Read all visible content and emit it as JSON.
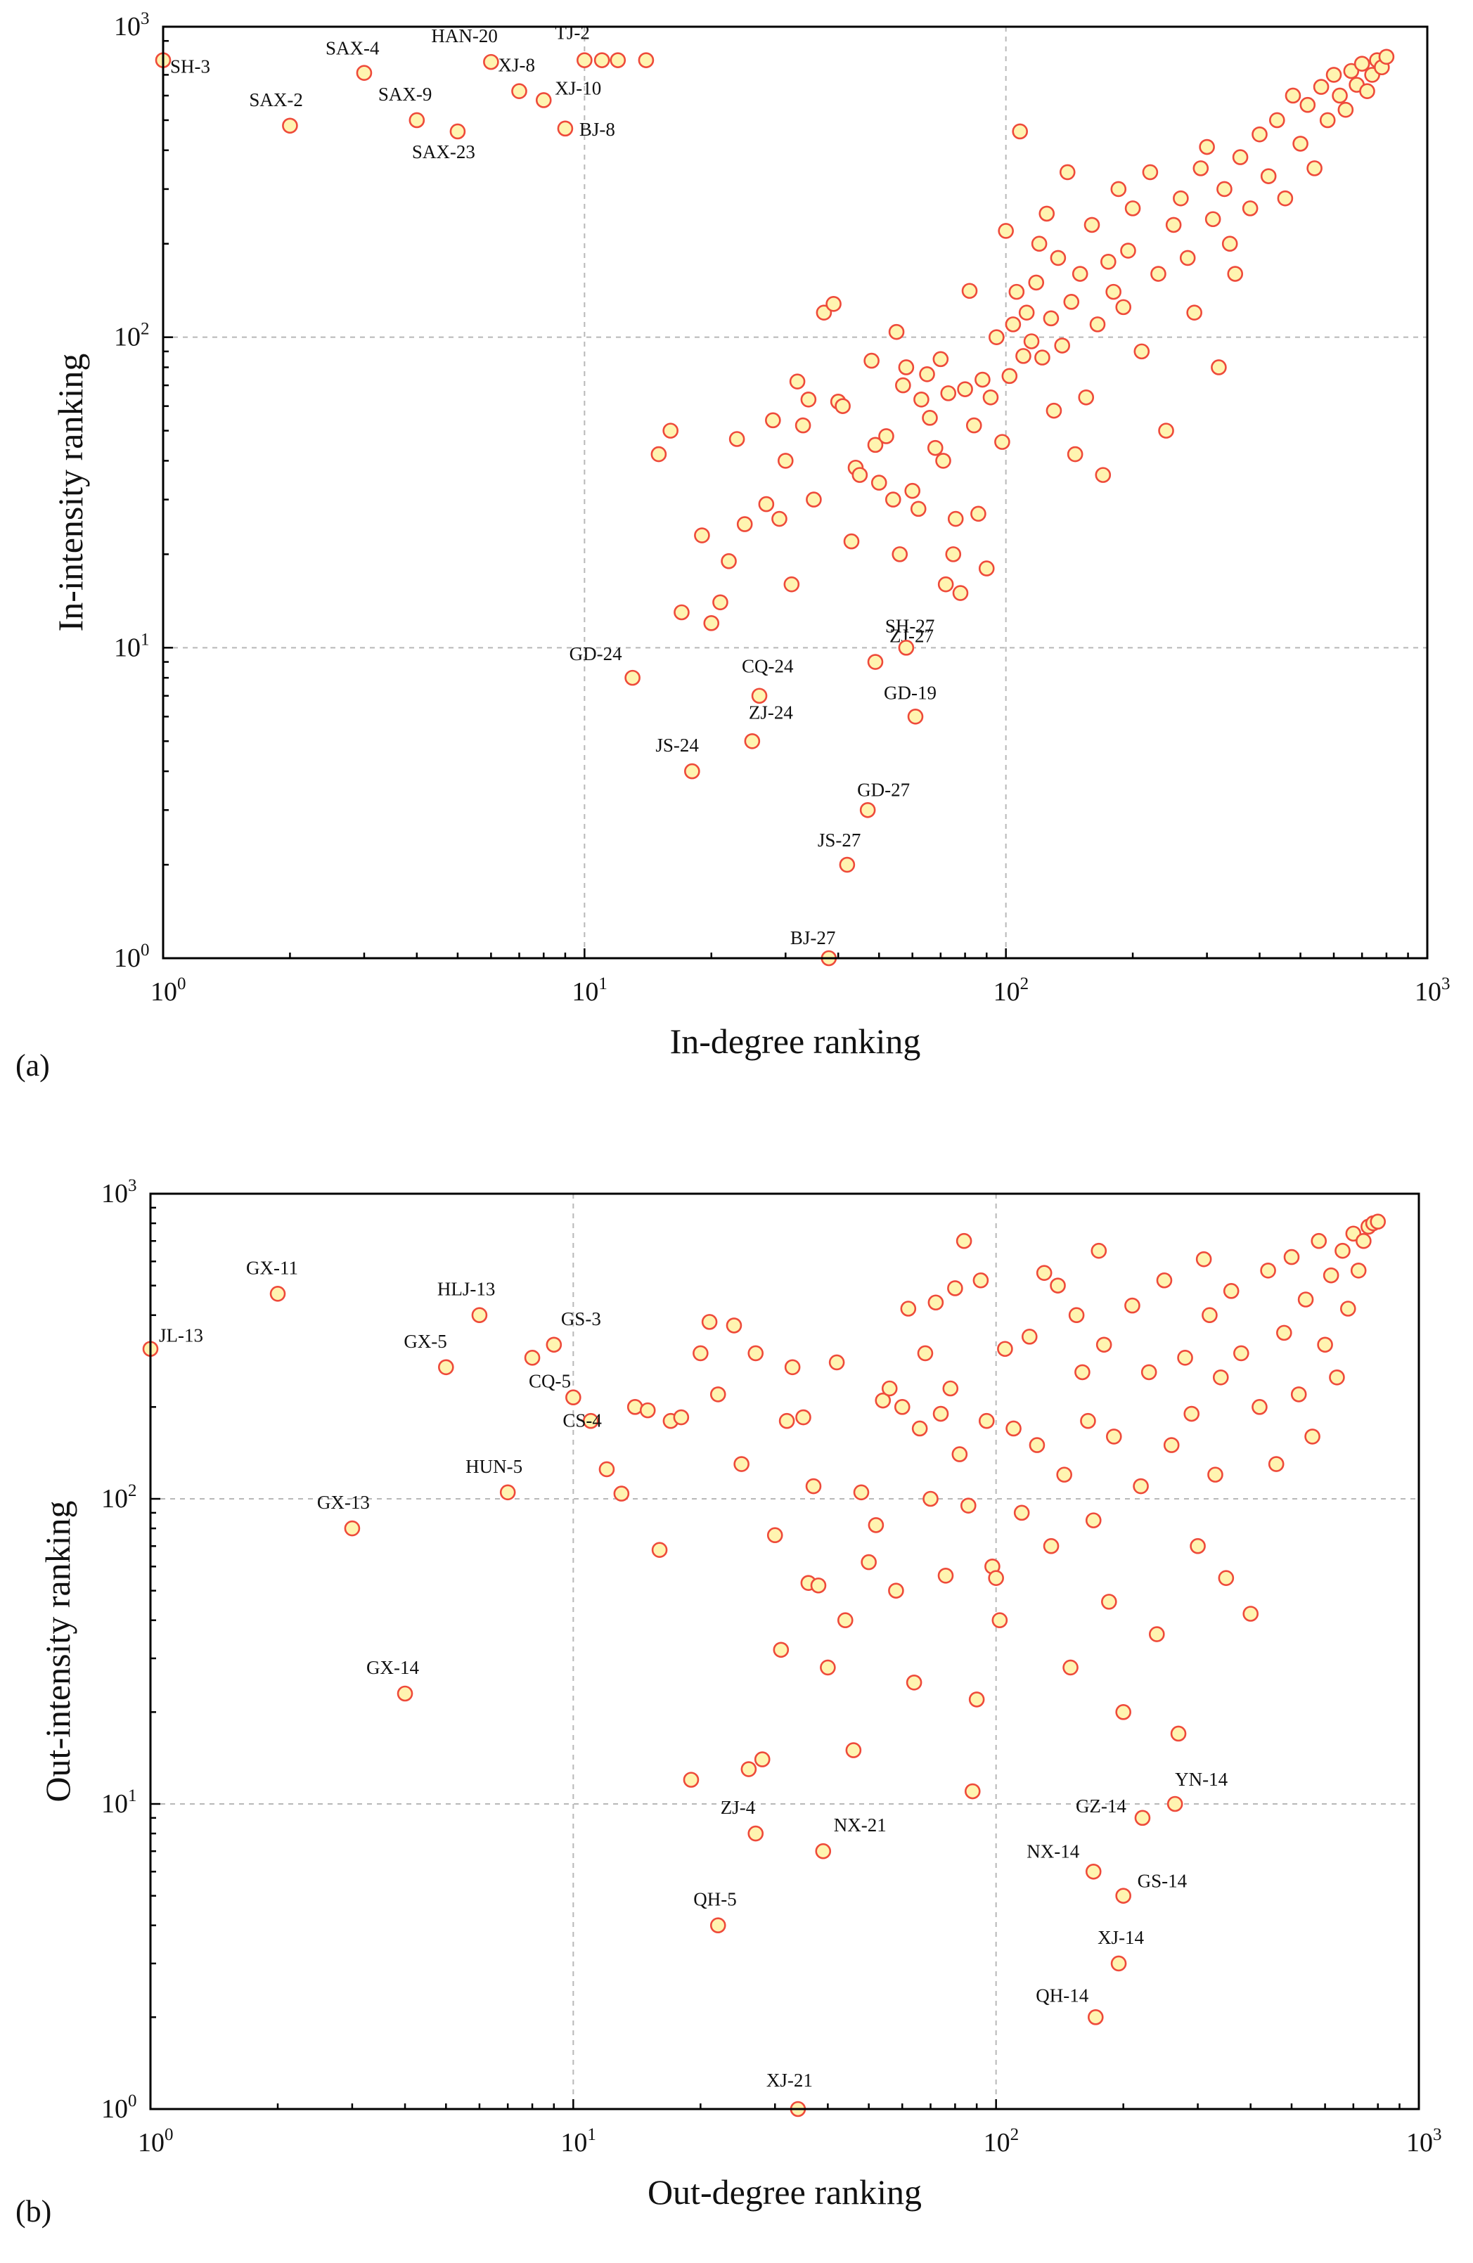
{
  "colors": {
    "marker_fill": "#fff4b0",
    "marker_edge": "#ee4a3a",
    "grid": "#b8b8b8",
    "axis": "#000000"
  },
  "chart_data": [
    {
      "panel": "(a)",
      "type": "scatter",
      "xscale": "log",
      "yscale": "log",
      "xlim": [
        1,
        1000
      ],
      "ylim": [
        1,
        1000
      ],
      "xlabel": "In-degree ranking",
      "ylabel": "In-intensity ranking",
      "xticks": [
        "10^0",
        "10^1",
        "10^2",
        "10^3"
      ],
      "yticks": [
        "10^0",
        "10^1",
        "10^2",
        "10^3"
      ],
      "grid": true,
      "labeled_points": [
        {
          "label": "SH-3",
          "x": 1,
          "y": 780
        },
        {
          "label": "SAX-2",
          "x": 2,
          "y": 480
        },
        {
          "label": "SAX-4",
          "x": 3,
          "y": 710
        },
        {
          "label": "SAX-9",
          "x": 4,
          "y": 500
        },
        {
          "label": "SAX-23",
          "x": 5,
          "y": 460
        },
        {
          "label": "HAN-20",
          "x": 6,
          "y": 770
        },
        {
          "label": "XJ-8",
          "x": 7,
          "y": 620
        },
        {
          "label": "XJ-10",
          "x": 8,
          "y": 580
        },
        {
          "label": "BJ-8",
          "x": 9,
          "y": 470
        },
        {
          "label": "TJ-2",
          "x": 10,
          "y": 780
        },
        {
          "label": "GD-24",
          "x": 13,
          "y": 8
        },
        {
          "label": "JS-24",
          "x": 18,
          "y": 4
        },
        {
          "label": "ZJ-24",
          "x": 25,
          "y": 5
        },
        {
          "label": "CQ-24",
          "x": 26,
          "y": 7
        },
        {
          "label": "BJ-27",
          "x": 38,
          "y": 1
        },
        {
          "label": "JS-27",
          "x": 42,
          "y": 2
        },
        {
          "label": "GD-27",
          "x": 47,
          "y": 3
        },
        {
          "label": "ZJ-27",
          "x": 49,
          "y": 9
        },
        {
          "label": "SH-27",
          "x": 58,
          "y": 10
        },
        {
          "label": "GD-19",
          "x": 61,
          "y": 6
        }
      ],
      "other_points": [
        [
          11,
          780
        ],
        [
          12,
          780
        ],
        [
          14,
          780
        ],
        [
          15,
          42
        ],
        [
          16,
          50
        ],
        [
          17,
          13
        ],
        [
          19,
          23
        ],
        [
          20,
          12
        ],
        [
          21,
          14
        ],
        [
          22,
          19
        ],
        [
          23,
          47
        ],
        [
          24,
          25
        ],
        [
          27,
          29
        ],
        [
          28,
          54
        ],
        [
          29,
          26
        ],
        [
          30,
          40
        ],
        [
          31,
          16
        ],
        [
          32,
          72
        ],
        [
          33,
          52
        ],
        [
          34,
          63
        ],
        [
          35,
          30
        ],
        [
          37,
          120
        ],
        [
          39,
          128
        ],
        [
          40,
          62
        ],
        [
          41,
          60
        ],
        [
          43,
          22
        ],
        [
          44,
          38
        ],
        [
          45,
          36
        ],
        [
          48,
          84
        ],
        [
          49,
          45
        ],
        [
          50,
          34
        ],
        [
          52,
          48
        ],
        [
          54,
          30
        ],
        [
          55,
          104
        ],
        [
          56,
          20
        ],
        [
          57,
          70
        ],
        [
          58,
          80
        ],
        [
          60,
          32
        ],
        [
          62,
          28
        ],
        [
          63,
          63
        ],
        [
          65,
          76
        ],
        [
          66,
          55
        ],
        [
          68,
          44
        ],
        [
          70,
          85
        ],
        [
          71,
          40
        ],
        [
          72,
          16
        ],
        [
          73,
          66
        ],
        [
          75,
          20
        ],
        [
          76,
          26
        ],
        [
          78,
          15
        ],
        [
          80,
          68
        ],
        [
          82,
          141
        ],
        [
          84,
          52
        ],
        [
          86,
          27
        ],
        [
          88,
          73
        ],
        [
          90,
          18
        ],
        [
          92,
          64
        ],
        [
          95,
          100
        ],
        [
          98,
          46
        ],
        [
          100,
          220
        ],
        [
          102,
          75
        ],
        [
          104,
          110
        ],
        [
          106,
          140
        ],
        [
          108,
          460
        ],
        [
          110,
          87
        ],
        [
          112,
          120
        ],
        [
          115,
          97
        ],
        [
          118,
          150
        ],
        [
          120,
          200
        ],
        [
          122,
          86
        ],
        [
          125,
          250
        ],
        [
          128,
          115
        ],
        [
          130,
          58
        ],
        [
          133,
          180
        ],
        [
          136,
          94
        ],
        [
          140,
          340
        ],
        [
          143,
          130
        ],
        [
          146,
          42
        ],
        [
          150,
          160
        ],
        [
          155,
          64
        ],
        [
          160,
          230
        ],
        [
          165,
          110
        ],
        [
          170,
          36
        ],
        [
          175,
          175
        ],
        [
          180,
          140
        ],
        [
          185,
          300
        ],
        [
          190,
          125
        ],
        [
          195,
          190
        ],
        [
          200,
          260
        ],
        [
          210,
          90
        ],
        [
          220,
          340
        ],
        [
          230,
          160
        ],
        [
          240,
          50
        ],
        [
          250,
          230
        ],
        [
          260,
          280
        ],
        [
          270,
          180
        ],
        [
          280,
          120
        ],
        [
          290,
          350
        ],
        [
          300,
          410
        ],
        [
          310,
          240
        ],
        [
          320,
          80
        ],
        [
          330,
          300
        ],
        [
          340,
          200
        ],
        [
          350,
          160
        ],
        [
          360,
          380
        ],
        [
          380,
          260
        ],
        [
          400,
          450
        ],
        [
          420,
          330
        ],
        [
          440,
          500
        ],
        [
          460,
          280
        ],
        [
          480,
          600
        ],
        [
          500,
          420
        ],
        [
          520,
          560
        ],
        [
          540,
          350
        ],
        [
          560,
          640
        ],
        [
          580,
          500
        ],
        [
          600,
          700
        ],
        [
          620,
          600
        ],
        [
          640,
          540
        ],
        [
          660,
          720
        ],
        [
          680,
          650
        ],
        [
          700,
          760
        ],
        [
          720,
          620
        ],
        [
          740,
          700
        ],
        [
          760,
          780
        ],
        [
          780,
          740
        ],
        [
          800,
          800
        ]
      ]
    },
    {
      "panel": "(b)",
      "type": "scatter",
      "xscale": "log",
      "yscale": "log",
      "xlim": [
        1,
        1000
      ],
      "ylim": [
        1,
        1000
      ],
      "xlabel": "Out-degree ranking",
      "ylabel": "Out-intensity ranking",
      "xticks": [
        "10^0",
        "10^1",
        "10^2",
        "10^3"
      ],
      "yticks": [
        "10^0",
        "10^1",
        "10^2",
        "10^3"
      ],
      "grid": true,
      "labeled_points": [
        {
          "label": "JL-13",
          "x": 1,
          "y": 310
        },
        {
          "label": "GX-11",
          "x": 2,
          "y": 470
        },
        {
          "label": "GX-13",
          "x": 3,
          "y": 80
        },
        {
          "label": "GX-14",
          "x": 4,
          "y": 23
        },
        {
          "label": "GX-5",
          "x": 5,
          "y": 270
        },
        {
          "label": "HLJ-13",
          "x": 6,
          "y": 400
        },
        {
          "label": "HUN-5",
          "x": 7,
          "y": 105
        },
        {
          "label": "CQ-5",
          "x": 8,
          "y": 290
        },
        {
          "label": "GS-3",
          "x": 9,
          "y": 320
        },
        {
          "label": "CS-4",
          "x": 10,
          "y": 215
        },
        {
          "label": "QH-5",
          "x": 22,
          "y": 4
        },
        {
          "label": "ZJ-4",
          "x": 27,
          "y": 8
        },
        {
          "label": "XJ-21",
          "x": 34,
          "y": 1
        },
        {
          "label": "NX-21",
          "x": 39,
          "y": 7
        },
        {
          "label": "NX-14",
          "x": 170,
          "y": 6
        },
        {
          "label": "QH-14",
          "x": 172,
          "y": 2
        },
        {
          "label": "XJ-14",
          "x": 195,
          "y": 3
        },
        {
          "label": "GS-14",
          "x": 200,
          "y": 5
        },
        {
          "label": "GZ-14",
          "x": 222,
          "y": 9
        },
        {
          "label": "YN-14",
          "x": 265,
          "y": 10
        }
      ],
      "other_points": [
        [
          11,
          180
        ],
        [
          12,
          125
        ],
        [
          13,
          104
        ],
        [
          14,
          200
        ],
        [
          15,
          195
        ],
        [
          16,
          68
        ],
        [
          17,
          180
        ],
        [
          18,
          185
        ],
        [
          19,
          12
        ],
        [
          20,
          300
        ],
        [
          21,
          380
        ],
        [
          22,
          220
        ],
        [
          24,
          370
        ],
        [
          25,
          130
        ],
        [
          26,
          13
        ],
        [
          27,
          300
        ],
        [
          28,
          14
        ],
        [
          30,
          76
        ],
        [
          31,
          32
        ],
        [
          32,
          180
        ],
        [
          33,
          270
        ],
        [
          35,
          185
        ],
        [
          36,
          53
        ],
        [
          37,
          110
        ],
        [
          38,
          52
        ],
        [
          40,
          28
        ],
        [
          42,
          280
        ],
        [
          44,
          40
        ],
        [
          46,
          15
        ],
        [
          48,
          105
        ],
        [
          50,
          62
        ],
        [
          52,
          82
        ],
        [
          54,
          210
        ],
        [
          56,
          230
        ],
        [
          58,
          50
        ],
        [
          60,
          200
        ],
        [
          62,
          420
        ],
        [
          64,
          25
        ],
        [
          66,
          170
        ],
        [
          68,
          300
        ],
        [
          70,
          100
        ],
        [
          72,
          440
        ],
        [
          74,
          190
        ],
        [
          76,
          56
        ],
        [
          78,
          230
        ],
        [
          80,
          490
        ],
        [
          82,
          140
        ],
        [
          84,
          700
        ],
        [
          86,
          95
        ],
        [
          88,
          11
        ],
        [
          90,
          22
        ],
        [
          92,
          520
        ],
        [
          95,
          180
        ],
        [
          98,
          60
        ],
        [
          100,
          55
        ],
        [
          102,
          40
        ],
        [
          105,
          310
        ],
        [
          110,
          170
        ],
        [
          115,
          90
        ],
        [
          120,
          340
        ],
        [
          125,
          150
        ],
        [
          130,
          550
        ],
        [
          135,
          70
        ],
        [
          140,
          500
        ],
        [
          145,
          120
        ],
        [
          150,
          28
        ],
        [
          155,
          400
        ],
        [
          160,
          260
        ],
        [
          165,
          180
        ],
        [
          170,
          85
        ],
        [
          175,
          650
        ],
        [
          180,
          320
        ],
        [
          185,
          46
        ],
        [
          190,
          160
        ],
        [
          200,
          20
        ],
        [
          210,
          430
        ],
        [
          220,
          110
        ],
        [
          230,
          260
        ],
        [
          240,
          36
        ],
        [
          250,
          520
        ],
        [
          260,
          150
        ],
        [
          270,
          17
        ],
        [
          280,
          290
        ],
        [
          290,
          190
        ],
        [
          300,
          70
        ],
        [
          310,
          610
        ],
        [
          320,
          400
        ],
        [
          330,
          120
        ],
        [
          340,
          250
        ],
        [
          350,
          55
        ],
        [
          360,
          480
        ],
        [
          380,
          300
        ],
        [
          400,
          42
        ],
        [
          420,
          200
        ],
        [
          440,
          560
        ],
        [
          460,
          130
        ],
        [
          480,
          350
        ],
        [
          500,
          620
        ],
        [
          520,
          220
        ],
        [
          540,
          450
        ],
        [
          560,
          160
        ],
        [
          580,
          700
        ],
        [
          600,
          320
        ],
        [
          620,
          540
        ],
        [
          640,
          250
        ],
        [
          660,
          650
        ],
        [
          680,
          420
        ],
        [
          700,
          740
        ],
        [
          720,
          560
        ],
        [
          740,
          700
        ],
        [
          760,
          780
        ],
        [
          780,
          800
        ],
        [
          800,
          810
        ]
      ]
    }
  ]
}
